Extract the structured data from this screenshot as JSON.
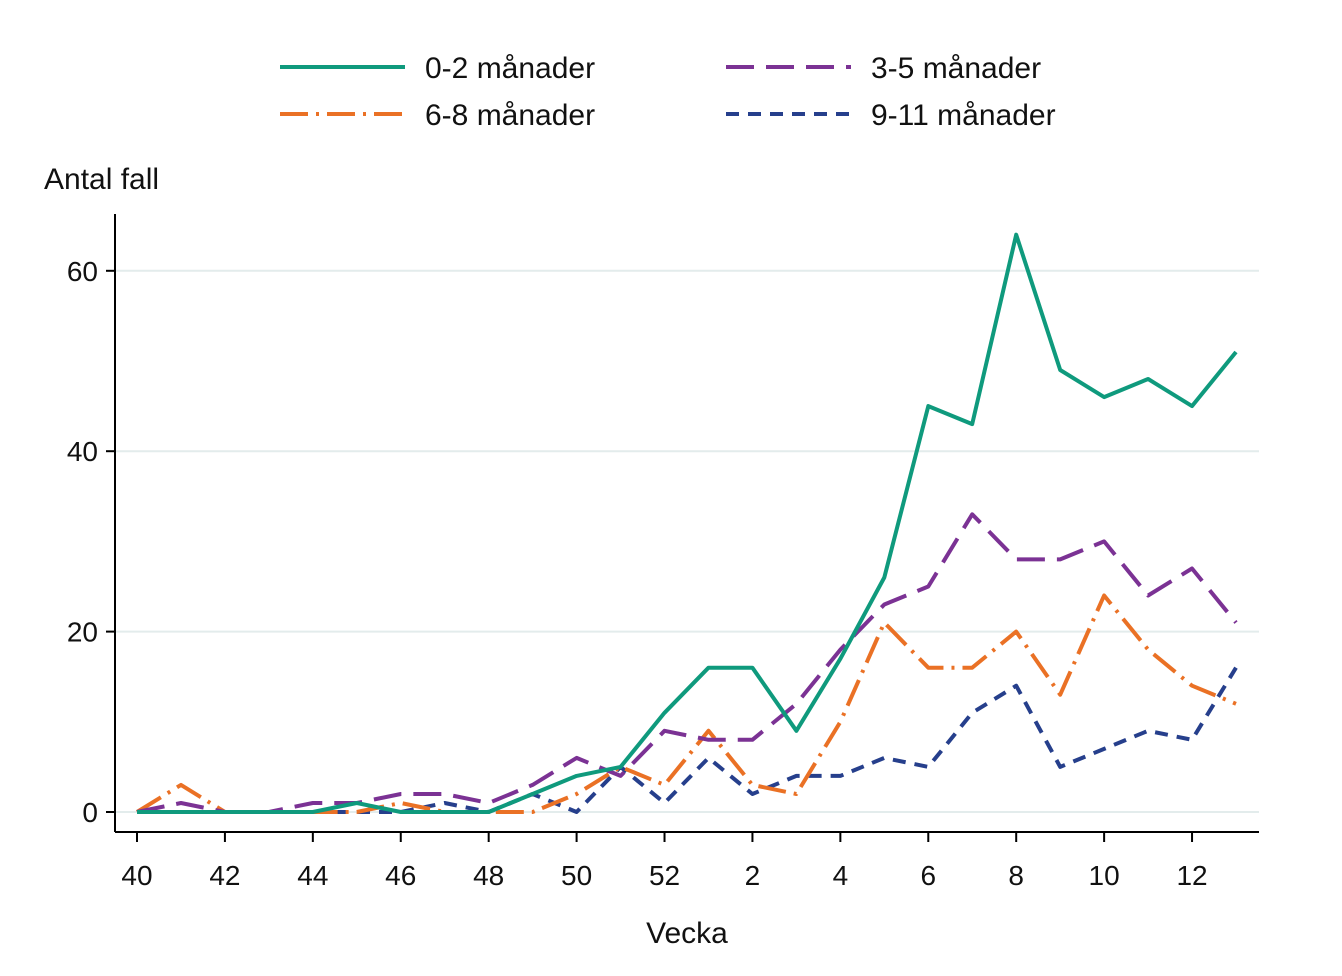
{
  "chart_data": {
    "type": "line",
    "title": "",
    "ylabel": "Antal fall",
    "xlabel": "Vecka",
    "categories": [
      "40",
      "41",
      "42",
      "43",
      "44",
      "45",
      "46",
      "47",
      "48",
      "49",
      "50",
      "51",
      "52",
      "1",
      "2",
      "3",
      "4",
      "5",
      "6",
      "7",
      "8",
      "9",
      "10",
      "11",
      "12",
      "13"
    ],
    "x_tick_labels": [
      "40",
      "42",
      "44",
      "46",
      "48",
      "50",
      "52",
      "2",
      "4",
      "6",
      "8",
      "10",
      "12"
    ],
    "y_ticks": [
      0,
      20,
      40,
      60
    ],
    "ylim": [
      -2,
      66
    ],
    "grid": true,
    "legend_position": "top",
    "series": [
      {
        "name": "0-2 månader",
        "color": "#0f9a7d",
        "dash": "solid",
        "values": [
          0,
          0,
          0,
          0,
          0,
          1,
          0,
          0,
          0,
          2,
          4,
          5,
          11,
          16,
          16,
          9,
          17,
          26,
          45,
          43,
          64,
          49,
          46,
          48,
          45,
          51
        ]
      },
      {
        "name": "3-5 månader",
        "color": "#7b3294",
        "dash": "longdash",
        "values": [
          0,
          1,
          0,
          0,
          1,
          1,
          2,
          2,
          1,
          3,
          6,
          4,
          9,
          8,
          8,
          12,
          18,
          23,
          25,
          33,
          28,
          28,
          30,
          24,
          27,
          21
        ]
      },
      {
        "name": "6-8 månader",
        "color": "#ea7125",
        "dash": "dashdot",
        "values": [
          0,
          3,
          0,
          0,
          0,
          0,
          1,
          0,
          0,
          0,
          2,
          5,
          3,
          9,
          3,
          2,
          10,
          21,
          16,
          16,
          20,
          13,
          24,
          18,
          14,
          12
        ]
      },
      {
        "name": "9-11 månader",
        "color": "#263f8c",
        "dash": "shortdash",
        "values": [
          0,
          0,
          0,
          0,
          0,
          0,
          0,
          1,
          0,
          2,
          0,
          5,
          1,
          6,
          2,
          4,
          4,
          6,
          5,
          11,
          14,
          5,
          7,
          9,
          8,
          16
        ]
      }
    ]
  }
}
